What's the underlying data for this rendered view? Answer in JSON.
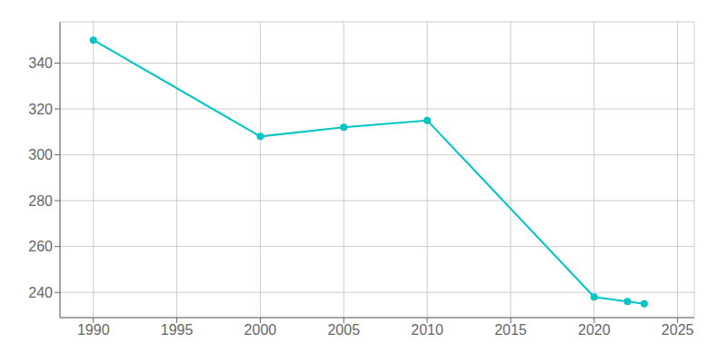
{
  "chart_data": {
    "type": "line",
    "x": [
      1990,
      2000,
      2005,
      2010,
      2020,
      2022,
      2023
    ],
    "values": [
      350,
      308,
      312,
      315,
      238,
      236,
      235
    ],
    "color": "#00C5C5",
    "marker": "circle",
    "xlim": [
      1988,
      2026
    ],
    "ylim": [
      229,
      358
    ],
    "xticks": [
      1990,
      1995,
      2000,
      2005,
      2010,
      2015,
      2020,
      2025
    ],
    "yticks": [
      240,
      260,
      280,
      300,
      320,
      340
    ],
    "grid": true
  }
}
